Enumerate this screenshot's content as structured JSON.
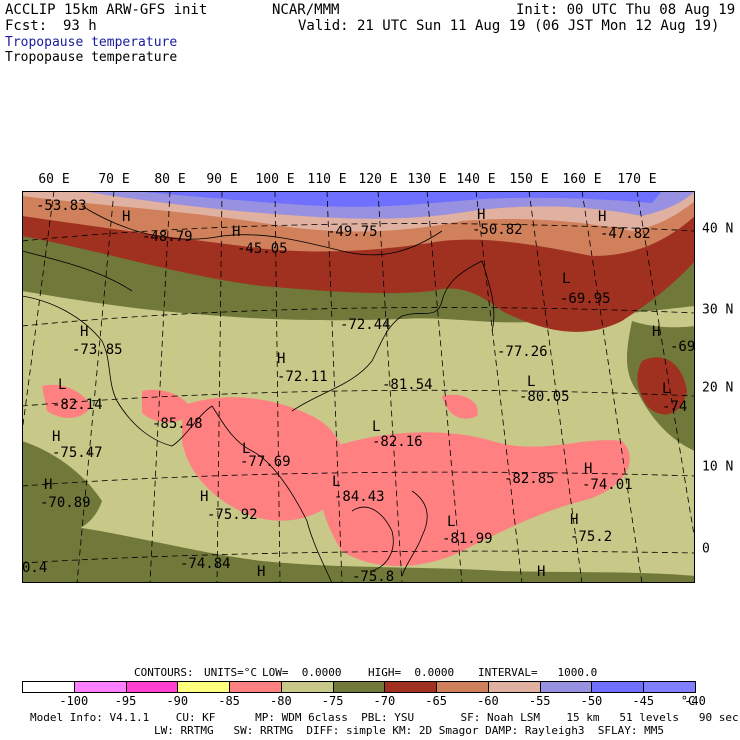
{
  "header": {
    "model": "ACCLIP 15km ARW-GFS init",
    "center": "NCAR/MMM",
    "init": "Init: 00 UTC Thu 08 Aug 19",
    "fcst_label": "Fcst:",
    "fcst_value": "93 h",
    "valid": "Valid: 21 UTC Sun 11 Aug 19 (06 JST Mon 12 Aug 19)",
    "field_title": "Tropopause temperature",
    "field_subtitle": "Tropopause temperature"
  },
  "map": {
    "lon_labels": [
      "60 E",
      "70 E",
      "80 E",
      "90 E",
      "100 E",
      "110 E",
      "120 E",
      "130 E",
      "140 E",
      "150 E",
      "160 E",
      "170 E"
    ],
    "lat_labels": [
      "40 N",
      "30 N",
      "20 N",
      "10 N",
      "0"
    ],
    "annotations": [
      {
        "t": "-53.83"
      },
      {
        "t": "-48.79"
      },
      {
        "t": "-45.05"
      },
      {
        "t": "-49.75"
      },
      {
        "t": "-50.82"
      },
      {
        "t": "-47.82"
      },
      {
        "t": "-69.95"
      },
      {
        "t": "-72.44"
      },
      {
        "t": "-73.85"
      },
      {
        "t": "-72.11"
      },
      {
        "t": "-77.26"
      },
      {
        "t": "-69"
      },
      {
        "t": "-81.54"
      },
      {
        "t": "-80.05"
      },
      {
        "t": "-74"
      },
      {
        "t": "-82.14"
      },
      {
        "t": "-85.48"
      },
      {
        "t": "-82.16"
      },
      {
        "t": "-75.47"
      },
      {
        "t": "-77.69"
      },
      {
        "t": "-82.85"
      },
      {
        "t": "-74.01"
      },
      {
        "t": "-70.89"
      },
      {
        "t": "-84.43"
      },
      {
        "t": "-75.92"
      },
      {
        "t": "-81.99"
      },
      {
        "t": "-75.2"
      },
      {
        "t": "-74.84"
      },
      {
        "t": "-75.8"
      },
      {
        "t": "0.4"
      },
      {
        "t": "H"
      },
      {
        "t": "L"
      }
    ]
  },
  "contours_line": {
    "label": "CONTOURS:",
    "units": "UNITS=°C",
    "low": "LOW=  0.0000",
    "high": "HIGH=  0.0000",
    "interval": "INTERVAL=   1000.0"
  },
  "colorbar": {
    "labels": [
      "-100",
      "-95",
      "-90",
      "-85",
      "-80",
      "-75",
      "-70",
      "-65",
      "-60",
      "-55",
      "-50",
      "-45",
      "-40"
    ],
    "unit": "°C",
    "colors": [
      "#ffffff",
      "#ff80ff",
      "#ff40d0",
      "#ffff80",
      "#ff8080",
      "#c8c888",
      "#70783a",
      "#a03020",
      "#d0805a",
      "#e0b0a0",
      "#9890e0",
      "#7070ff",
      "#8080ff"
    ]
  },
  "footer": {
    "line1": "Model Info: V4.1.1    CU: KF      MP: WDM 6class  PBL: YSU       SF: Noah LSM    15 km   51 levels   90 sec",
    "line2": "LW: RRTMG   SW: RRTMG  DIFF: simple KM: 2D Smagor DAMP: Rayleigh3  SFLAY: MM5"
  }
}
